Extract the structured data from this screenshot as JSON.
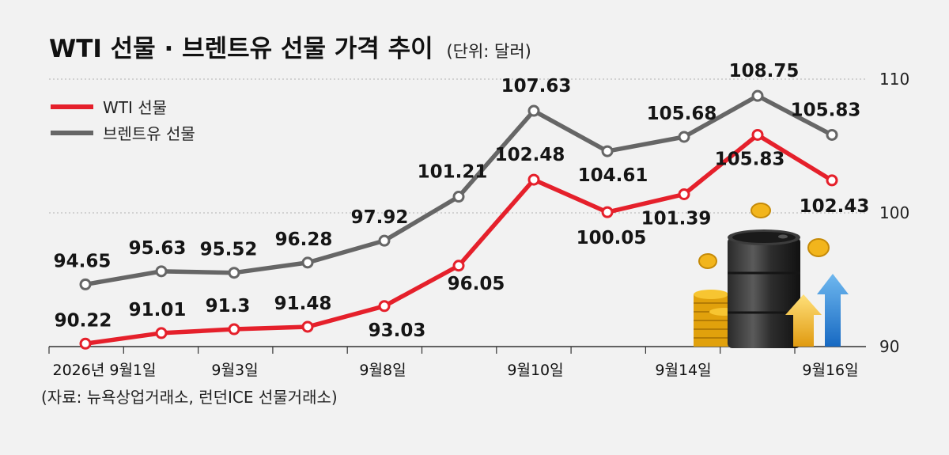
{
  "header": {
    "title": "WTI 선물 · 브렌트유 선물 가격 추이",
    "unit": "(단위: 달러)"
  },
  "source": "(자료: 뉴욕상업거래소, 런던ICE 선물거래소)",
  "colors": {
    "wti": "#e5202b",
    "brent": "#666666",
    "grid": "#bfbfbf",
    "axis": "#333333"
  },
  "chart_data": {
    "type": "line",
    "x_tick_labels": [
      "2026년 9월1일",
      "9월3일",
      "9월8일",
      "9월10일",
      "9월14일",
      "9월16일"
    ],
    "yticks": [
      90,
      100,
      110
    ],
    "ylim": [
      90,
      110
    ],
    "grid": true,
    "legend_position": "top-left",
    "series": [
      {
        "name": "WTI 선물",
        "color": "#e5202b",
        "values": [
          90.22,
          91.01,
          91.3,
          91.48,
          93.03,
          96.05,
          102.48,
          100.05,
          101.39,
          105.83,
          102.43
        ]
      },
      {
        "name": "브렌트유 선물",
        "color": "#666666",
        "values": [
          94.65,
          95.63,
          95.52,
          96.28,
          97.92,
          101.21,
          107.63,
          104.61,
          105.68,
          108.75,
          105.83
        ]
      }
    ]
  },
  "illustration": {
    "subject": "oil-barrel-with-coins-and-up-arrows"
  }
}
